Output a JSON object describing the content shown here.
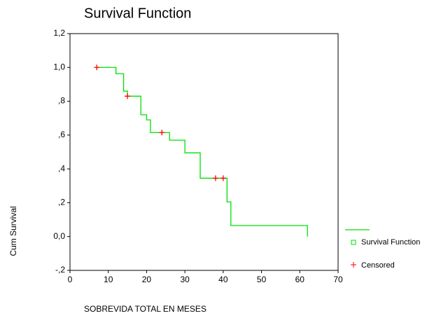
{
  "chart_data": {
    "type": "step",
    "title": "Survival Function",
    "x_label": "SOBREVIDA TOTAL EN MESES",
    "y_label": "Cum Survival",
    "xlim": [
      0,
      70
    ],
    "xticks": [
      0,
      10,
      20,
      30,
      40,
      50,
      60,
      70
    ],
    "ylim": [
      -0.2,
      1.2
    ],
    "yticks": [
      {
        "value": -0.2,
        "label": "-,2"
      },
      {
        "value": 0,
        "label": "0,0"
      },
      {
        "value": 0.2,
        "label": ",2"
      },
      {
        "value": 0.4,
        "label": ",4"
      },
      {
        "value": 0.6,
        "label": ",6"
      },
      {
        "value": 0.8,
        "label": ",8"
      },
      {
        "value": 1.0,
        "label": "1,0"
      },
      {
        "value": 1.2,
        "label": "1,2"
      }
    ],
    "series": [
      {
        "name": "Survival Function",
        "color": "#00e000",
        "x": [
          7,
          12,
          14,
          15,
          18.5,
          20,
          21,
          26,
          30,
          34,
          41,
          42,
          62
        ],
        "values": [
          1.0,
          0.963,
          0.86,
          0.83,
          0.72,
          0.69,
          0.615,
          0.57,
          0.495,
          0.345,
          0.205,
          0.065,
          0
        ]
      },
      {
        "name": "Censored",
        "color": "#ff0000",
        "x": [
          7,
          15,
          24,
          38,
          40
        ],
        "values": [
          1.0,
          0.83,
          0.615,
          0.345,
          0.345
        ]
      }
    ]
  }
}
